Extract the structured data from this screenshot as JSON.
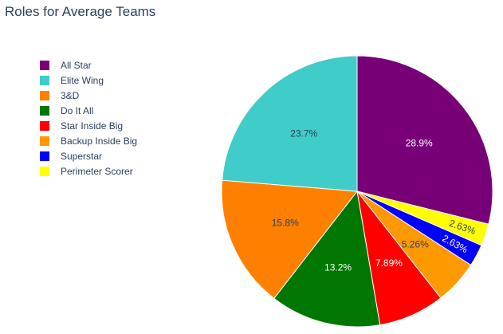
{
  "chart_data": {
    "type": "pie",
    "title": "Roles for Average Teams",
    "legend_placement": "top-left",
    "direction": "clockwise",
    "start_angle_deg": 90,
    "slices": [
      {
        "label": "All Star",
        "value": 28.9,
        "display": "28.9%",
        "color": "#770077",
        "text_color": "#ffffff"
      },
      {
        "label": "Perimeter Scorer",
        "value": 2.63,
        "display": "2.63%",
        "color": "#ffff00",
        "text_color": "#2a3f5f"
      },
      {
        "label": "Superstar",
        "value": 2.63,
        "display": "2.63%",
        "color": "#0000ff",
        "text_color": "#ffffff"
      },
      {
        "label": "Backup Inside Big",
        "value": 5.26,
        "display": "5.26%",
        "color": "#ff9900",
        "text_color": "#2a3f5f"
      },
      {
        "label": "Star Inside Big",
        "value": 7.89,
        "display": "7.89%",
        "color": "#ff0000",
        "text_color": "#ffffff"
      },
      {
        "label": "Do It All",
        "value": 13.2,
        "display": "13.2%",
        "color": "#007700",
        "text_color": "#ffffff"
      },
      {
        "label": "3&D",
        "value": 15.8,
        "display": "15.8%",
        "color": "#ff8000",
        "text_color": "#2a3f5f"
      },
      {
        "label": "Elite Wing",
        "value": 23.7,
        "display": "23.7%",
        "color": "#40ccc8",
        "text_color": "#2a3f5f"
      }
    ],
    "legend_order": [
      "All Star",
      "Elite Wing",
      "3&D",
      "Do It All",
      "Star Inside Big",
      "Backup Inside Big",
      "Superstar",
      "Perimeter Scorer"
    ]
  }
}
